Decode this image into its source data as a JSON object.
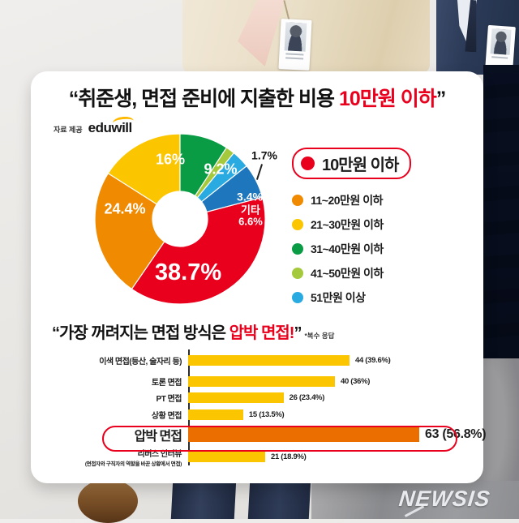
{
  "watermark": "NEWSIS",
  "header": {
    "title_prefix": "“취준생, 면접 준비에 지출한 비용 ",
    "title_highlight": "10만원 이하",
    "title_suffix": "”",
    "source_label": "자료 제공",
    "source_brand": "eduwill"
  },
  "section2": {
    "title_prefix": "“가장 꺼려지는 면접 방식은 ",
    "title_highlight": "압박 면접!",
    "title_suffix": "”",
    "note": "*복수 응답"
  },
  "legend": {
    "items": [
      {
        "label": "10만원 이하",
        "color": "#E8001D",
        "emphasized": true
      },
      {
        "label": "11~20만원 이하",
        "color": "#F08A00",
        "emphasized": false
      },
      {
        "label": "21~30만원 이하",
        "color": "#FBC600",
        "emphasized": false
      },
      {
        "label": "31~40만원 이하",
        "color": "#0A9B45",
        "emphasized": false
      },
      {
        "label": "41~50만원 이하",
        "color": "#A5C93C",
        "emphasized": false
      },
      {
        "label": "51만원 이상",
        "color": "#29ABE2",
        "emphasized": false
      }
    ]
  },
  "colors": {
    "accent_red": "#E8001D",
    "bar_yellow": "#FBC600",
    "bar_highlight": "#EB6E00"
  },
  "chart_data": [
    {
      "type": "pie",
      "title": "취준생, 면접 준비에 지출한 비용",
      "unit": "%",
      "start_angle_deg": 75.24,
      "donut_hole_ratio": 0.32,
      "segments": [
        {
          "label": "10만원 이하",
          "value": 38.7,
          "display": "38.7%",
          "color": "#E8001D"
        },
        {
          "label": "11~20만원 이하",
          "value": 24.4,
          "display": "24.4%",
          "color": "#F08A00"
        },
        {
          "label": "21~30만원 이하",
          "value": 16,
          "display": "16%",
          "color": "#FBC600"
        },
        {
          "label": "31~40만원 이하",
          "value": 9.2,
          "display": "9.2%",
          "color": "#0A9B45"
        },
        {
          "label": "41~50만원 이하",
          "value": 1.7,
          "display": "1.7%",
          "color": "#A5C93C"
        },
        {
          "label": "51만원 이상",
          "value": 3.4,
          "display": "3.4%",
          "color": "#29ABE2"
        },
        {
          "label": "기타",
          "value": 6.6,
          "display": "기타\n6.6%",
          "color": "#1E76BC"
        }
      ]
    },
    {
      "type": "bar",
      "orientation": "horizontal",
      "title": "가장 꺼려지는 면접 방식",
      "note": "*복수 응답",
      "scale_max": 63,
      "bars": [
        {
          "label": "이색 면접(등산, 술자리 등)",
          "sublabel": "",
          "value": 44,
          "display": "44 (39.6%)",
          "highlight": false
        },
        {
          "label": "토론 면접",
          "sublabel": "",
          "value": 40,
          "display": "40 (36%)",
          "highlight": false
        },
        {
          "label": "PT 면접",
          "sublabel": "",
          "value": 26,
          "display": "26 (23.4%)",
          "highlight": false
        },
        {
          "label": "상황 면접",
          "sublabel": "",
          "value": 15,
          "display": "15 (13.5%)",
          "highlight": false
        },
        {
          "label": "압박 면접",
          "sublabel": "",
          "value": 63,
          "display": "63 (56.8%)",
          "highlight": true
        },
        {
          "label": "리버스 인터뷰",
          "sublabel": "(면접자와 구직자의 역할을 바꾼 상황에서 면접)",
          "value": 21,
          "display": "21 (18.9%)",
          "highlight": false
        }
      ]
    }
  ]
}
